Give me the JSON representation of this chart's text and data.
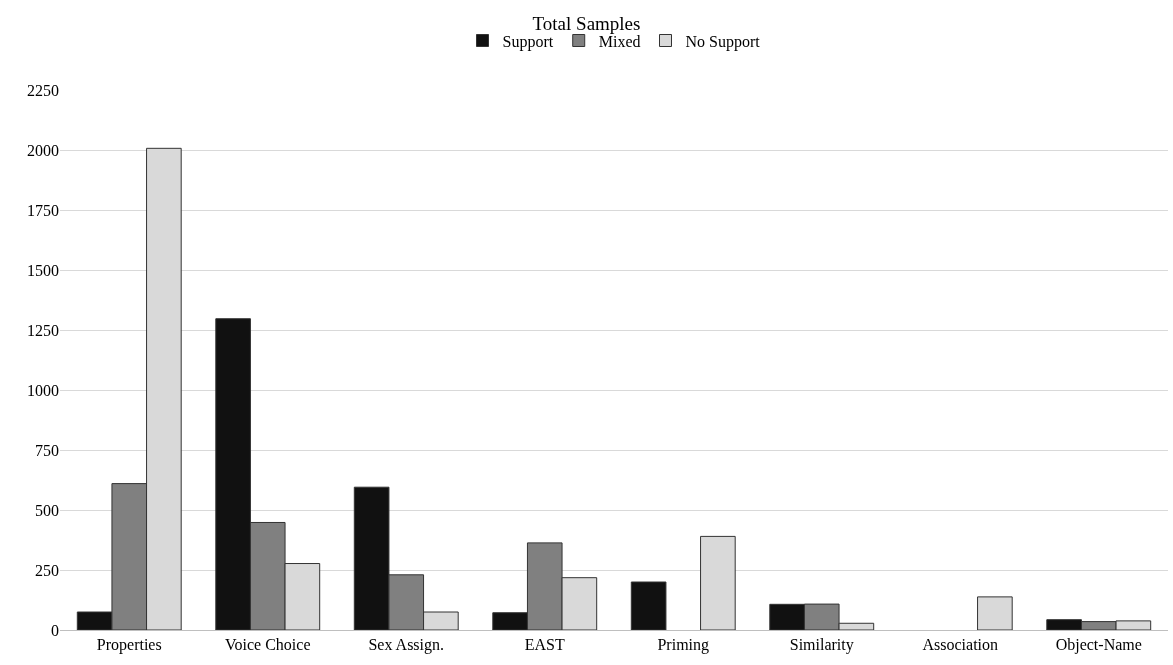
{
  "chart_data": {
    "type": "bar",
    "title": "Total Samples",
    "categories": [
      "Properties",
      "Voice Choice",
      "Sex Assign.",
      "EAST",
      "Priming",
      "Similarity",
      "Association",
      "Object-Name"
    ],
    "series": [
      {
        "name": "Support",
        "color": "#111111",
        "values": [
          75,
          1297,
          595,
          72,
          200,
          107,
          null,
          43
        ]
      },
      {
        "name": "Mixed",
        "color": "#808080",
        "values": [
          610,
          448,
          230,
          363,
          null,
          108,
          null,
          35
        ]
      },
      {
        "name": "No Support",
        "color": "#d9d9d9",
        "values": [
          2007,
          277,
          75,
          218,
          390,
          28,
          138,
          38
        ]
      }
    ],
    "ylim": [
      0,
      2250
    ],
    "yticks": [
      0,
      250,
      500,
      750,
      1000,
      1250,
      1500,
      1750,
      2000,
      2250
    ],
    "grid": "y",
    "legend": "top"
  }
}
